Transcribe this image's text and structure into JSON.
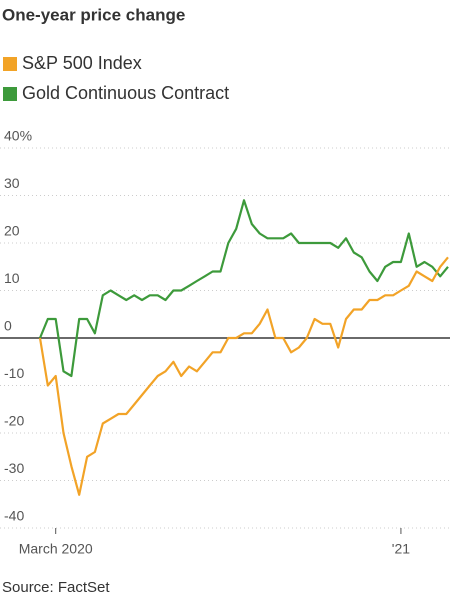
{
  "chart_data": {
    "type": "line",
    "title": "One-year price change",
    "source": "Source: FactSet",
    "categories": [
      null,
      null,
      "March 2020",
      null,
      null,
      null,
      null,
      null,
      null,
      null,
      null,
      null,
      null,
      null,
      null,
      null,
      null,
      null,
      null,
      null,
      null,
      null,
      null,
      null,
      null,
      null,
      null,
      null,
      null,
      null,
      null,
      null,
      null,
      null,
      null,
      null,
      null,
      null,
      null,
      null,
      null,
      null,
      null,
      null,
      null,
      null,
      "'21",
      null,
      null,
      null,
      null,
      null,
      null
    ],
    "series": [
      {
        "name": "S&P 500 Index",
        "color": "#f2a327",
        "values": [
          0,
          -10,
          -8,
          -20,
          -27,
          -33,
          -25,
          -24,
          -18,
          -17,
          -16,
          -16,
          -14,
          -12,
          -10,
          -8,
          -7,
          -5,
          -8,
          -6,
          -7,
          -5,
          -3,
          -3,
          0,
          0,
          1,
          1,
          3,
          6,
          0,
          0,
          -3,
          -2,
          0,
          4,
          3,
          3,
          -2,
          4,
          6,
          6,
          8,
          8,
          9,
          9,
          10,
          11,
          14,
          13,
          12,
          15,
          17
        ]
      },
      {
        "name": "Gold Continuous Contract",
        "color": "#3d9a3b",
        "values": [
          0,
          4,
          4,
          -7,
          -8,
          4,
          4,
          1,
          9,
          10,
          9,
          8,
          9,
          8,
          9,
          9,
          8,
          10,
          10,
          11,
          12,
          13,
          14,
          14,
          20,
          23,
          29,
          24,
          22,
          21,
          21,
          21,
          22,
          20,
          20,
          20,
          20,
          20,
          19,
          21,
          18,
          17,
          14,
          12,
          15,
          16,
          16,
          22,
          15,
          16,
          15,
          13,
          15
        ]
      }
    ],
    "ylim": [
      -40,
      40
    ],
    "yticks": [
      -40,
      -30,
      -20,
      -10,
      0,
      10,
      20,
      30,
      {
        "value": 40,
        "label": "40%"
      }
    ],
    "grid": true
  }
}
